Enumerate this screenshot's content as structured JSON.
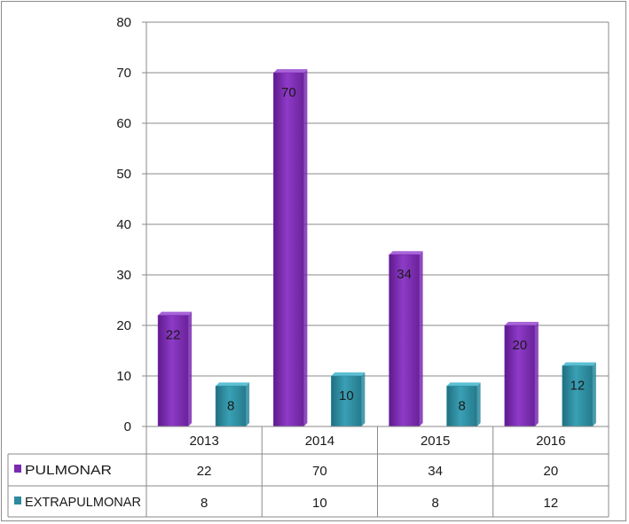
{
  "chart_data": {
    "type": "bar",
    "categories": [
      "2013",
      "2014",
      "2015",
      "2016"
    ],
    "series": [
      {
        "name": "PULMONAR",
        "values": [
          22,
          70,
          34,
          20
        ],
        "color": "#7a2bb0"
      },
      {
        "name": "EXTRAPULMONAR",
        "values": [
          8,
          10,
          8,
          12
        ],
        "color": "#2d8a9e"
      }
    ],
    "ylim": [
      0,
      80
    ],
    "yticks": [
      "0",
      "10",
      "20",
      "30",
      "40",
      "50",
      "60",
      "70",
      "80"
    ],
    "grid": true,
    "legend": "data table below plot",
    "data_labels": true
  }
}
